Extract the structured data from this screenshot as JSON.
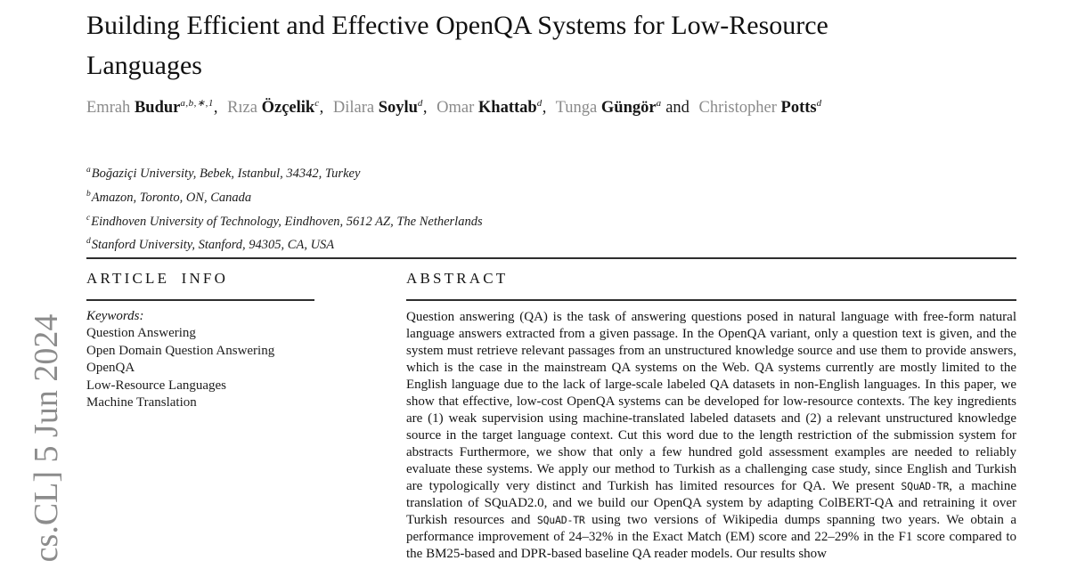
{
  "paper": {
    "title_line1": "Building Efficient and Effective OpenQA Systems for Low-Resource",
    "title_line2": "Languages"
  },
  "authors": [
    {
      "first": "Emrah",
      "last": "Budur",
      "sup": "a,b,∗,1",
      "sep": ","
    },
    {
      "first": "Rıza",
      "last": "Özçelik",
      "sup": "c",
      "sep": ","
    },
    {
      "first": "Dilara",
      "last": "Soylu",
      "sup": "d",
      "sep": ","
    },
    {
      "first": "Omar",
      "last": "Khattab",
      "sup": "d",
      "sep": ","
    },
    {
      "first": "Tunga",
      "last": "Güngör",
      "sup": "a",
      "sep": " and"
    },
    {
      "first": "Christopher",
      "last": "Potts",
      "sup": "d",
      "sep": ""
    }
  ],
  "affiliations": [
    {
      "sup": "a",
      "text": "Boğaziçi University, Bebek, Istanbul, 34342, Turkey"
    },
    {
      "sup": "b",
      "text": "Amazon, Toronto, ON, Canada"
    },
    {
      "sup": "c",
      "text": "Eindhoven University of Technology, Eindhoven, 5612 AZ, The Netherlands"
    },
    {
      "sup": "d",
      "text": "Stanford University, Stanford, 94305, CA, USA"
    }
  ],
  "article_info": {
    "heading": "ARTICLE INFO",
    "keywords_label": "Keywords:",
    "keywords": [
      "Question Answering",
      "Open Domain Question Answering",
      "OpenQA",
      "Low-Resource Languages",
      "Machine Translation"
    ]
  },
  "abstract": {
    "heading": "ABSTRACT",
    "part1": "Question answering (QA) is the task of answering questions posed in natural language with free-form natural language answers extracted from a given passage. In the OpenQA variant, only a question text is given, and the system must retrieve relevant passages from an unstructured knowledge source and use them to provide answers, which is the case in the mainstream QA systems on the Web. QA systems currently are mostly limited to the English language due to the lack of large-scale labeled QA datasets in non-English languages. In this paper, we show that effective, low-cost OpenQA systems can be developed for low-resource contexts. The key ingredients are (1) weak supervision using machine-translated labeled datasets and (2) a relevant unstructured knowledge source in the target language context. Cut this word due to the length restriction of the submission system for abstracts Furthermore, we show that only a few hundred gold assessment examples are needed to reliably evaluate these systems. We apply our method to Turkish as a challenging case study, since English and Turkish are typologically very distinct and Turkish has limited resources for QA. We present ",
    "mono1": "SQuAD-TR",
    "part2": ", a machine translation of SQuAD2.0, and we build our OpenQA system by adapting ColBERT-QA and retraining it over Turkish resources and ",
    "mono2": "SQuAD-TR",
    "part3": " using two versions of Wikipedia dumps spanning two years. We obtain a performance improvement of 24–32% in the Exact Match (EM) score and 22–29% in the F1 score compared to the BM25-based and DPR-based baseline QA reader models. Our results show"
  },
  "watermark": {
    "text": "cs.CL] 5 Jun 2024"
  }
}
